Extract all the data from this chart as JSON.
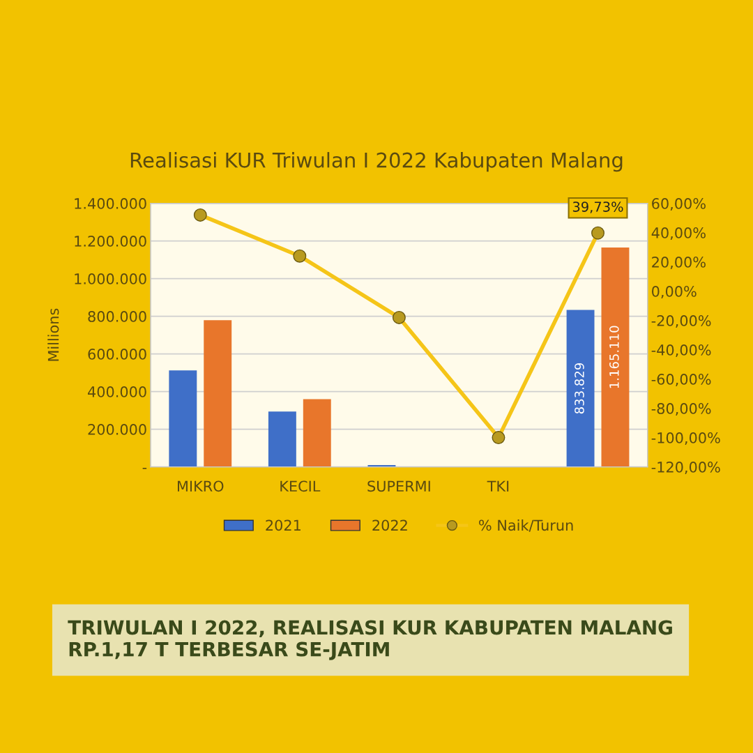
{
  "chart_data": {
    "type": "bar",
    "title": "Realisasi KUR Triwulan I 2022 Kabupaten Malang",
    "ylabel": "Millions",
    "categories": [
      "MIKRO",
      "KECIL",
      "SUPERMI",
      "TKI",
      null
    ],
    "series": [
      {
        "name": "2021",
        "color": "#3f6fc8",
        "values": [
          512000,
          294000,
          10000,
          0,
          833829
        ],
        "value_labels": [
          null,
          null,
          null,
          null,
          "833.829"
        ]
      },
      {
        "name": "2022",
        "color": "#e8762b",
        "values": [
          779000,
          360000,
          null,
          0,
          1165110
        ],
        "value_labels": [
          null,
          null,
          null,
          null,
          "1.165.110"
        ]
      },
      {
        "name": "% Naik/Turun",
        "type": "line",
        "axis": "y2",
        "color": "#f5c518",
        "marker": "circle",
        "values": [
          52,
          24,
          -18,
          -100,
          39.73
        ],
        "value_labels": [
          null,
          null,
          null,
          null,
          "39,73%"
        ]
      }
    ],
    "ylim": [
      0,
      1400000
    ],
    "yticks": [
      {
        "value": 0,
        "label": "-"
      },
      {
        "value": 200000,
        "label": "200.000"
      },
      {
        "value": 400000,
        "label": "400.000"
      },
      {
        "value": 600000,
        "label": "600.000"
      },
      {
        "value": 800000,
        "label": "800.000"
      },
      {
        "value": 1000000,
        "label": "1.000.000"
      },
      {
        "value": 1200000,
        "label": "1.200.000"
      },
      {
        "value": 1400000,
        "label": "1.400.000"
      }
    ],
    "y2lim": [
      -120,
      60
    ],
    "y2ticks": [
      {
        "value": -120,
        "label": "-120,00%"
      },
      {
        "value": -100,
        "label": "-100,00%"
      },
      {
        "value": -80,
        "label": "-80,00%"
      },
      {
        "value": -60,
        "label": "-60,00%"
      },
      {
        "value": -40,
        "label": "-40,00%"
      },
      {
        "value": -20,
        "label": "-20,00%"
      },
      {
        "value": 0,
        "label": "0,00%"
      },
      {
        "value": 20,
        "label": "20,00%"
      },
      {
        "value": 40,
        "label": "40,00%"
      },
      {
        "value": 60,
        "label": "60,00%"
      }
    ],
    "grid": "y",
    "legend": "bottom",
    "annotations": [
      "TRIWULAN I 2022, REALISASI KUR KABUPATEN MALANG RP.1,17 T TERBESAR SE-JATIM"
    ]
  }
}
